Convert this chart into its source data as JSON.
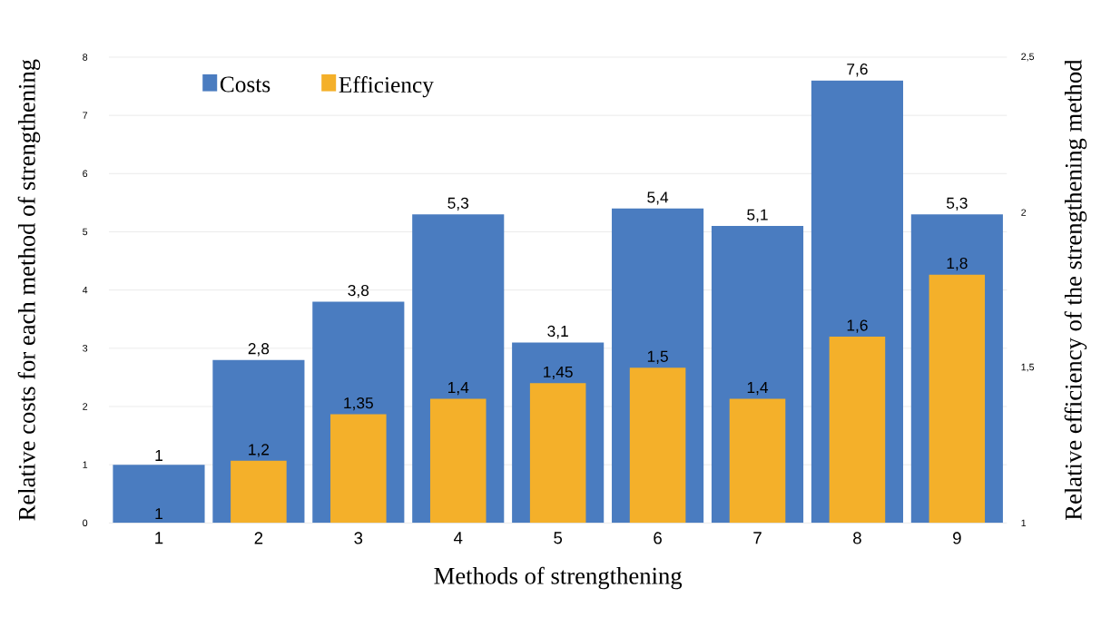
{
  "chart_data": {
    "type": "bar",
    "xlabel": "Methods of strengthening",
    "ylabel": "Relative costs for each method of strengthening",
    "y2label": "Relative efficiency of the strengthening method",
    "categories": [
      "1",
      "2",
      "3",
      "4",
      "5",
      "6",
      "7",
      "8",
      "9"
    ],
    "series": [
      {
        "name": "Costs",
        "color": "#4a7cc0",
        "values": [
          1,
          2.8,
          3.8,
          5.3,
          3.1,
          5.4,
          5.1,
          7.6,
          5.3
        ],
        "value_labels": [
          "1",
          "2,8",
          "3,8",
          "5,3",
          "3,1",
          "5,4",
          "5,1",
          "7,6",
          "5,3"
        ]
      },
      {
        "name": "Efficiency",
        "color": "#f4b02a",
        "axis": "y2",
        "values": [
          1,
          1.2,
          1.35,
          1.4,
          1.45,
          1.5,
          1.4,
          1.6,
          1.8
        ],
        "value_labels": [
          "1",
          "1,2",
          "1,35",
          "1,4",
          "1,45",
          "1,5",
          "1,4",
          "1,6",
          "1,8"
        ]
      }
    ],
    "ylim": [
      0,
      8
    ],
    "yticks": [
      0,
      1,
      2,
      3,
      4,
      5,
      6,
      7,
      8
    ],
    "y2lim": [
      1,
      2.5
    ],
    "y2ticks": [
      1,
      {
        "value": 1.5,
        "label": "1,5"
      },
      2,
      {
        "value": 2.5,
        "label": "2,5"
      }
    ],
    "grid": "y",
    "legend": "top left"
  }
}
